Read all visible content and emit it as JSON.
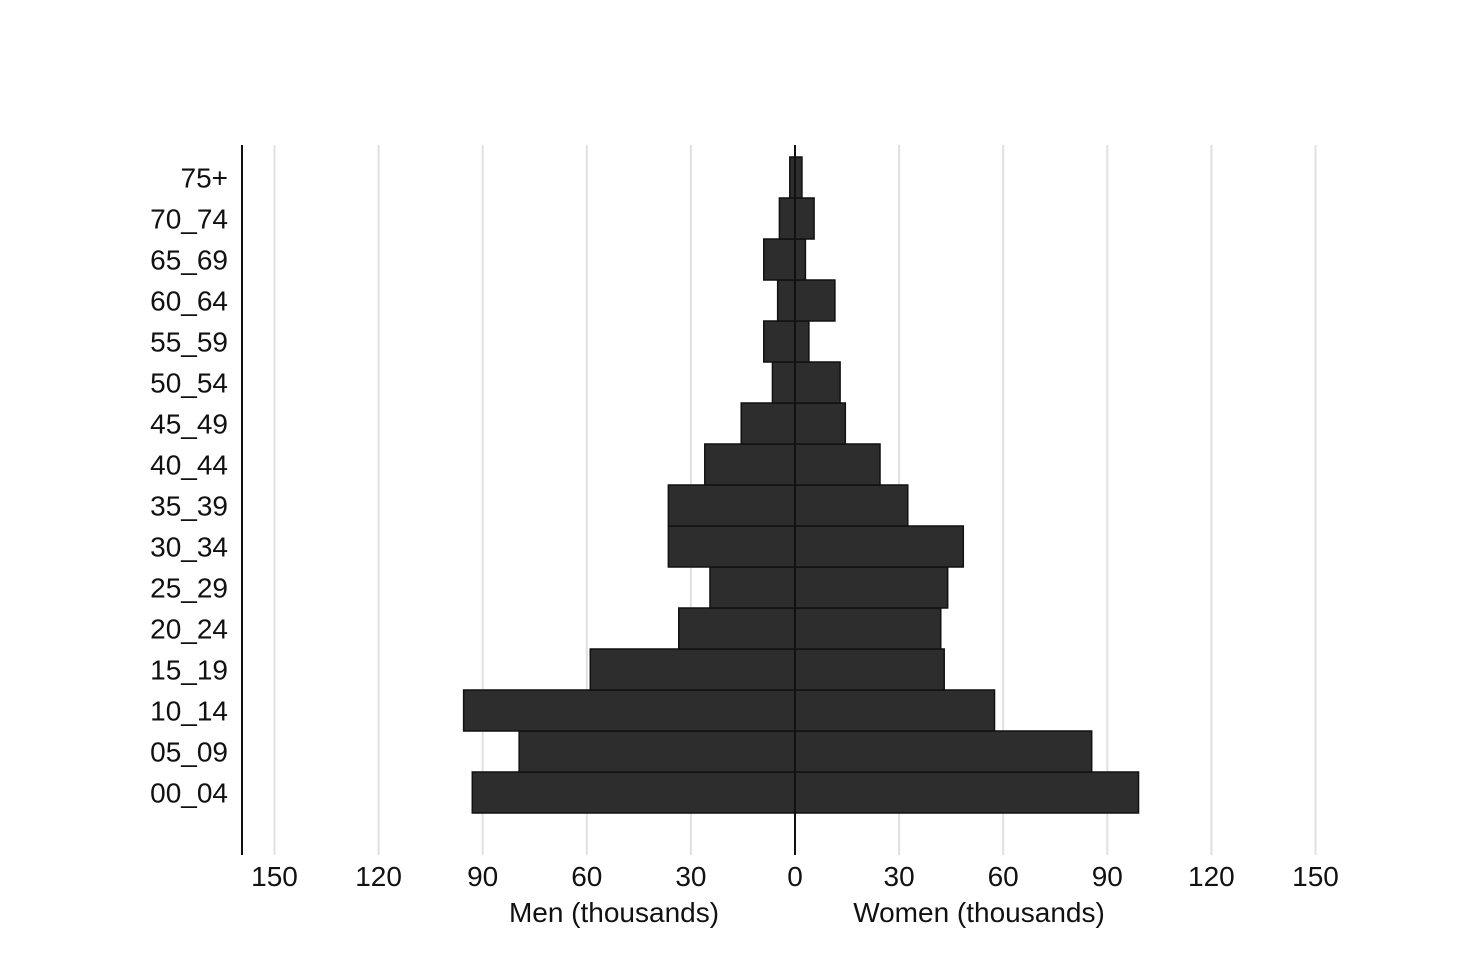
{
  "chart_data": {
    "type": "bar",
    "orientation": "horizontal",
    "layout": "population-pyramid",
    "categories": [
      "00_04",
      "05_09",
      "10_14",
      "15_19",
      "20_24",
      "25_29",
      "30_34",
      "35_39",
      "40_44",
      "45_49",
      "50_54",
      "55_59",
      "60_64",
      "65_69",
      "70_74",
      "75+"
    ],
    "series": [
      {
        "name": "Men (thousands)",
        "side": "left",
        "values": [
          93,
          79.5,
          95.5,
          59,
          33.5,
          24.5,
          36.5,
          36.5,
          26,
          15.5,
          6.5,
          9,
          5,
          9,
          4.5,
          1.5
        ]
      },
      {
        "name": "Women (thousands)",
        "side": "right",
        "values": [
          99,
          85.5,
          57.5,
          43,
          42,
          44,
          48.5,
          32.5,
          24.5,
          14.5,
          13,
          4,
          11.5,
          3,
          5.5,
          2
        ]
      }
    ],
    "xlim": [
      -165,
      165
    ],
    "xticks": [
      {
        "value": -150,
        "label": "150"
      },
      {
        "value": -120,
        "label": "120"
      },
      {
        "value": -90,
        "label": "90"
      },
      {
        "value": -60,
        "label": "60"
      },
      {
        "value": -30,
        "label": "30"
      },
      {
        "value": 0,
        "label": "0"
      },
      {
        "value": 30,
        "label": "30"
      },
      {
        "value": 60,
        "label": "60"
      },
      {
        "value": 90,
        "label": "90"
      },
      {
        "value": 120,
        "label": "120"
      },
      {
        "value": 150,
        "label": "150"
      }
    ],
    "xlabel_left": "Men (thousands)",
    "xlabel_right": "Women (thousands)",
    "grid": true,
    "colors": {
      "bar": "#2d2d2d",
      "bar_edge": "#111111",
      "grid": "#e0e0e0",
      "axis": "#111111"
    }
  }
}
